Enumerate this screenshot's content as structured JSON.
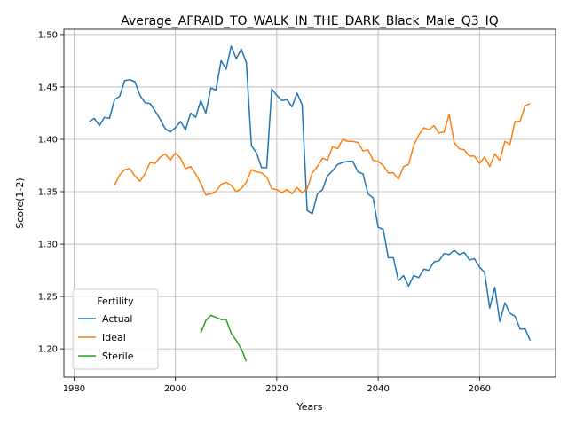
{
  "chart_data": {
    "type": "line",
    "title": "Average_AFRAID_TO_WALK_IN_THE_DARK_Black_Male_Q3_IQ",
    "xlabel": "Years",
    "ylabel": "Score(1-2)",
    "xlim": [
      1978,
      2075
    ],
    "ylim": [
      1.173,
      1.505
    ],
    "xticks": [
      1980,
      2000,
      2020,
      2040,
      2060
    ],
    "yticks": [
      1.2,
      1.25,
      1.3,
      1.35,
      1.4,
      1.45,
      1.5
    ],
    "ytick_labels": [
      "1.20",
      "1.25",
      "1.30",
      "1.35",
      "1.40",
      "1.45",
      "1.50"
    ],
    "grid": true,
    "legend": {
      "title": "Fertility",
      "placement": "lower-left"
    },
    "series": [
      {
        "name": "Actual",
        "color": "#1f77b4",
        "x": [
          1983,
          1984,
          1985,
          1986,
          1987,
          1988,
          1989,
          1990,
          1991,
          1992,
          1993,
          1994,
          1995,
          1996,
          1997,
          1998,
          1999,
          2000,
          2001,
          2002,
          2003,
          2004,
          2005,
          2006,
          2007,
          2008,
          2009,
          2010,
          2011,
          2012,
          2013,
          2014,
          2015,
          2016,
          2017,
          2018,
          2019,
          2020,
          2021,
          2022,
          2023,
          2024,
          2025,
          2026,
          2027,
          2028,
          2029,
          2030,
          2031,
          2032,
          2033,
          2034,
          2035,
          2036,
          2037,
          2038,
          2039,
          2040,
          2041,
          2042,
          2043,
          2044,
          2045,
          2046,
          2047,
          2048,
          2049,
          2050,
          2051,
          2052,
          2053,
          2054,
          2055,
          2056,
          2057,
          2058,
          2059,
          2060,
          2061,
          2062,
          2063,
          2064,
          2065,
          2066,
          2067,
          2068,
          2069,
          2070
        ],
        "values": [
          1.417,
          1.42,
          1.413,
          1.421,
          1.42,
          1.438,
          1.441,
          1.456,
          1.457,
          1.455,
          1.442,
          1.435,
          1.434,
          1.427,
          1.419,
          1.41,
          1.407,
          1.411,
          1.417,
          1.409,
          1.425,
          1.421,
          1.437,
          1.425,
          1.449,
          1.447,
          1.475,
          1.467,
          1.489,
          1.477,
          1.486,
          1.473,
          1.394,
          1.387,
          1.373,
          1.373,
          1.448,
          1.442,
          1.437,
          1.438,
          1.431,
          1.444,
          1.433,
          1.332,
          1.329,
          1.348,
          1.352,
          1.365,
          1.37,
          1.376,
          1.378,
          1.379,
          1.379,
          1.369,
          1.367,
          1.348,
          1.344,
          1.316,
          1.314,
          1.287,
          1.287,
          1.265,
          1.27,
          1.26,
          1.27,
          1.268,
          1.276,
          1.275,
          1.283,
          1.284,
          1.291,
          1.29,
          1.294,
          1.29,
          1.292,
          1.285,
          1.286,
          1.278,
          1.273,
          1.239,
          1.259,
          1.226,
          1.244,
          1.234,
          1.231,
          1.219,
          1.219,
          1.208
        ]
      },
      {
        "name": "Ideal",
        "color": "#ff7f0e",
        "x": [
          1988,
          1989,
          1990,
          1991,
          1992,
          1993,
          1994,
          1995,
          1996,
          1997,
          1998,
          1999,
          2000,
          2001,
          2002,
          2003,
          2004,
          2005,
          2006,
          2007,
          2008,
          2009,
          2010,
          2011,
          2012,
          2013,
          2014,
          2015,
          2016,
          2017,
          2018,
          2019,
          2020,
          2021,
          2022,
          2023,
          2024,
          2025,
          2026,
          2027,
          2028,
          2029,
          2030,
          2031,
          2032,
          2033,
          2034,
          2035,
          2036,
          2037,
          2038,
          2039,
          2040,
          2041,
          2042,
          2043,
          2044,
          2045,
          2046,
          2047,
          2048,
          2049,
          2050,
          2051,
          2052,
          2053,
          2054,
          2055,
          2056,
          2057,
          2058,
          2059,
          2060,
          2061,
          2062,
          2063,
          2064,
          2065,
          2066,
          2067,
          2068,
          2069,
          2070
        ],
        "values": [
          1.356,
          1.366,
          1.371,
          1.372,
          1.365,
          1.36,
          1.367,
          1.378,
          1.377,
          1.383,
          1.386,
          1.38,
          1.387,
          1.382,
          1.372,
          1.374,
          1.367,
          1.358,
          1.347,
          1.348,
          1.35,
          1.357,
          1.359,
          1.356,
          1.35,
          1.353,
          1.359,
          1.371,
          1.369,
          1.368,
          1.364,
          1.353,
          1.352,
          1.349,
          1.352,
          1.348,
          1.354,
          1.349,
          1.353,
          1.368,
          1.374,
          1.382,
          1.38,
          1.393,
          1.391,
          1.4,
          1.398,
          1.398,
          1.397,
          1.389,
          1.39,
          1.38,
          1.379,
          1.375,
          1.368,
          1.368,
          1.362,
          1.374,
          1.376,
          1.394,
          1.404,
          1.411,
          1.409,
          1.413,
          1.406,
          1.407,
          1.424,
          1.397,
          1.391,
          1.39,
          1.384,
          1.384,
          1.377,
          1.383,
          1.374,
          1.386,
          1.38,
          1.398,
          1.395,
          1.417,
          1.417,
          1.432,
          1.434
        ]
      },
      {
        "name": "Sterile",
        "color": "#2ca02c",
        "x": [
          2005,
          2006,
          2007,
          2008,
          2009,
          2010,
          2011,
          2012,
          2013,
          2014
        ],
        "values": [
          1.215,
          1.227,
          1.232,
          1.23,
          1.228,
          1.228,
          1.215,
          1.208,
          1.2,
          1.188
        ]
      }
    ]
  }
}
